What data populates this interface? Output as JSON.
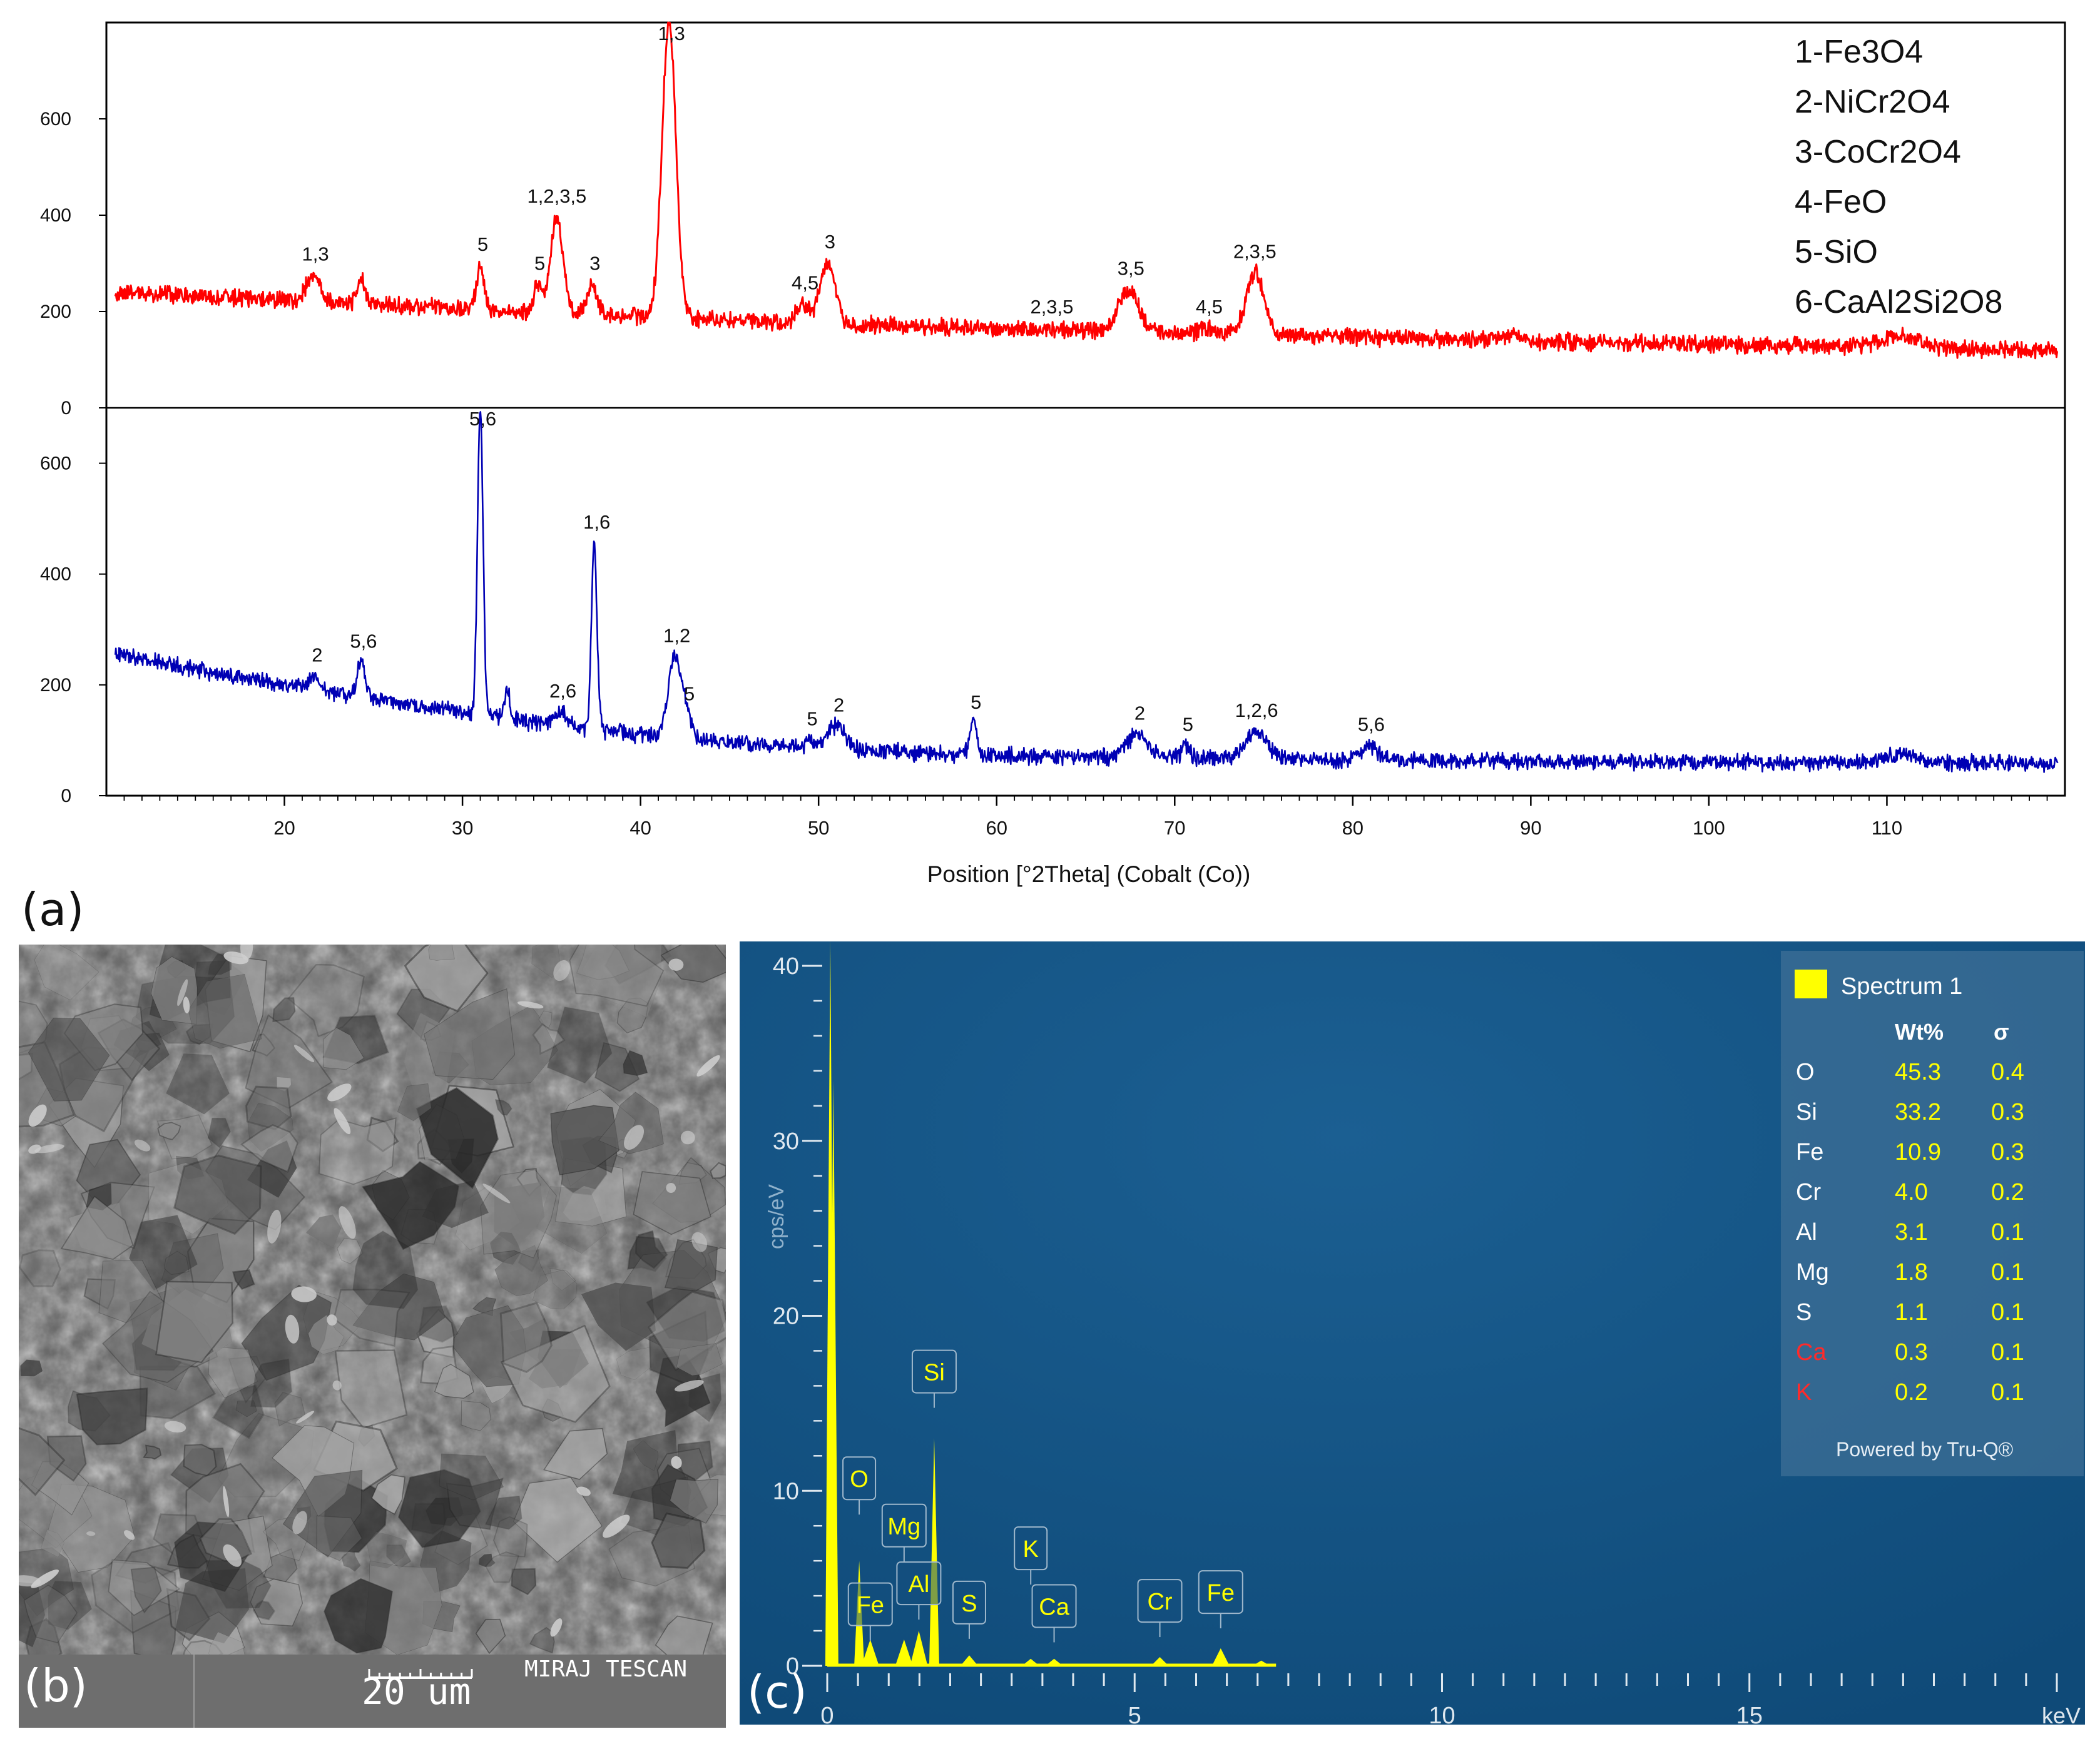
{
  "chart_data": [
    {
      "type": "line",
      "panel": "(a)",
      "xlabel": "Position [°2Theta] (Cobalt (Co))",
      "xlim": [
        10,
        120
      ],
      "x_ticks": [
        20,
        30,
        40,
        50,
        60,
        70,
        80,
        90,
        100,
        110
      ],
      "legend": [
        "1-Fe3O4",
        "2-NiCr2O4",
        "3-CoCr2O4",
        "4-FeO",
        "5-SiO",
        "6-CaAl2Si2O8"
      ],
      "legend_placement": "top-right",
      "series": [
        {
          "name": "top pattern",
          "color": "#ff0000",
          "ylim": [
            0,
            800
          ],
          "y_ticks": [
            0,
            200,
            400,
            600
          ],
          "baseline": [
            [
              10.5,
              240
            ],
            [
              20,
              225
            ],
            [
              30,
              205
            ],
            [
              40,
              190
            ],
            [
              50,
              175
            ],
            [
              60,
              165
            ],
            [
              70,
              155
            ],
            [
              80,
              148
            ],
            [
              90,
              138
            ],
            [
              100,
              132
            ],
            [
              110,
              128
            ],
            [
              119.5,
              118
            ]
          ],
          "peaks": [
            {
              "x": 21.6,
              "y": 275,
              "w": 0.5,
              "label": "1,3"
            },
            {
              "x": 24.3,
              "y": 265,
              "w": 0.3,
              "label": ""
            },
            {
              "x": 31.0,
              "y": 295,
              "w": 0.3,
              "label": "5"
            },
            {
              "x": 34.2,
              "y": 255,
              "w": 0.3,
              "label": "5"
            },
            {
              "x": 35.3,
              "y": 395,
              "w": 0.5,
              "label": "1,2,3,5"
            },
            {
              "x": 37.3,
              "y": 255,
              "w": 0.4,
              "label": "3"
            },
            {
              "x": 41.6,
              "y": 800,
              "w": 0.55,
              "label": "1,3"
            },
            {
              "x": 49.1,
              "y": 215,
              "w": 0.5,
              "label": "4,5"
            },
            {
              "x": 50.5,
              "y": 300,
              "w": 0.6,
              "label": "3"
            },
            {
              "x": 63.1,
              "y": 165,
              "w": 0.9,
              "label": "2,3,5"
            },
            {
              "x": 67.4,
              "y": 245,
              "w": 0.8,
              "label": "3,5"
            },
            {
              "x": 71.8,
              "y": 165,
              "w": 0.6,
              "label": "4,5"
            },
            {
              "x": 74.5,
              "y": 280,
              "w": 0.7,
              "label": "2,3,5"
            },
            {
              "x": 88.8,
              "y": 150,
              "w": 1.0,
              "label": ""
            },
            {
              "x": 110.8,
              "y": 150,
              "w": 1.2,
              "label": ""
            }
          ]
        },
        {
          "name": "bottom pattern",
          "color": "#0000b4",
          "ylim": [
            0,
            700
          ],
          "y_ticks": [
            0,
            200,
            400,
            600
          ],
          "baseline": [
            [
              10.5,
              255
            ],
            [
              15,
              228
            ],
            [
              20,
              200
            ],
            [
              25,
              175
            ],
            [
              30,
              150
            ],
            [
              35,
              128
            ],
            [
              40,
              110
            ],
            [
              45,
              95
            ],
            [
              50,
              85
            ],
            [
              55,
              78
            ],
            [
              60,
              72
            ],
            [
              70,
              68
            ],
            [
              80,
              65
            ],
            [
              90,
              62
            ],
            [
              100,
              60
            ],
            [
              110,
              60
            ],
            [
              119.5,
              58
            ]
          ],
          "peaks": [
            {
              "x": 21.7,
              "y": 215,
              "w": 0.4,
              "label": "2"
            },
            {
              "x": 24.3,
              "y": 240,
              "w": 0.3,
              "label": "5,6"
            },
            {
              "x": 31.0,
              "y": 700,
              "w": 0.22,
              "label": "5,6"
            },
            {
              "x": 32.5,
              "y": 200,
              "w": 0.2,
              "label": ""
            },
            {
              "x": 35.5,
              "y": 150,
              "w": 0.5,
              "label": "2,6"
            },
            {
              "x": 37.4,
              "y": 455,
              "w": 0.22,
              "label": "1,6"
            },
            {
              "x": 41.9,
              "y": 250,
              "w": 0.5,
              "label": "1,2"
            },
            {
              "x": 42.6,
              "y": 145,
              "w": 0.4,
              "label": "5"
            },
            {
              "x": 49.5,
              "y": 100,
              "w": 0.3,
              "label": "5"
            },
            {
              "x": 51.0,
              "y": 125,
              "w": 0.7,
              "label": "2"
            },
            {
              "x": 58.7,
              "y": 130,
              "w": 0.3,
              "label": "5"
            },
            {
              "x": 67.9,
              "y": 110,
              "w": 0.8,
              "label": "2"
            },
            {
              "x": 70.6,
              "y": 90,
              "w": 0.3,
              "label": "5"
            },
            {
              "x": 74.6,
              "y": 115,
              "w": 0.8,
              "label": "1,2,6"
            },
            {
              "x": 80.9,
              "y": 90,
              "w": 0.7,
              "label": "5,6"
            },
            {
              "x": 110.8,
              "y": 75,
              "w": 1.2,
              "label": ""
            }
          ]
        }
      ]
    },
    {
      "type": "bar",
      "panel": "(c)",
      "xlabel": "keV",
      "ylabel": "cps/eV",
      "xlim": [
        0,
        20
      ],
      "ylim": [
        0,
        40
      ],
      "x_ticks": [
        0,
        5,
        10,
        15
      ],
      "y_ticks": [
        0,
        10,
        20,
        30,
        40
      ],
      "series_name": "Spectrum 1",
      "series_color": "#ffff00",
      "lines": [
        {
          "x": 0.05,
          "y": 41.5
        },
        {
          "x": 0.1,
          "y": 33.5
        },
        {
          "x": 0.52,
          "y": 6.0
        },
        {
          "x": 0.7,
          "y": 1.5
        },
        {
          "x": 1.25,
          "y": 1.5
        },
        {
          "x": 1.49,
          "y": 2.0
        },
        {
          "x": 1.74,
          "y": 13.0
        },
        {
          "x": 2.31,
          "y": 0.6
        },
        {
          "x": 3.31,
          "y": 0.4
        },
        {
          "x": 3.69,
          "y": 0.4
        },
        {
          "x": 5.41,
          "y": 0.5
        },
        {
          "x": 6.4,
          "y": 1.0
        },
        {
          "x": 7.06,
          "y": 0.3
        }
      ],
      "peak_labels": [
        {
          "label": "O",
          "x": 0.52,
          "y": 9.5
        },
        {
          "label": "Fe",
          "x": 0.7,
          "y": 2.3
        },
        {
          "label": "Mg",
          "x": 1.25,
          "y": 6.8
        },
        {
          "label": "Al",
          "x": 1.49,
          "y": 3.5
        },
        {
          "label": "Si",
          "x": 1.74,
          "y": 15.6
        },
        {
          "label": "S",
          "x": 2.31,
          "y": 2.4
        },
        {
          "label": "K",
          "x": 3.31,
          "y": 5.5
        },
        {
          "label": "Ca",
          "x": 3.69,
          "y": 2.2
        },
        {
          "label": "Cr",
          "x": 5.41,
          "y": 2.5
        },
        {
          "label": "Fe",
          "x": 6.4,
          "y": 3.0
        }
      ]
    }
  ],
  "panel_labels": {
    "a": "(a)",
    "b": "(b)",
    "c": "(c)"
  },
  "sem": {
    "scale_label": "20 um",
    "footer_text": "MIRAJ TESCAN",
    "scale_bar_um": 20
  },
  "eds_table": {
    "title": "Spectrum 1",
    "col_wt": "Wt%",
    "col_sigma": "σ",
    "rows": [
      {
        "el": "O",
        "wt": "45.3",
        "sigma": "0.4",
        "flag": false
      },
      {
        "el": "Si",
        "wt": "33.2",
        "sigma": "0.3",
        "flag": false
      },
      {
        "el": "Fe",
        "wt": "10.9",
        "sigma": "0.3",
        "flag": false
      },
      {
        "el": "Cr",
        "wt": "4.0",
        "sigma": "0.2",
        "flag": false
      },
      {
        "el": "Al",
        "wt": "3.1",
        "sigma": "0.1",
        "flag": false
      },
      {
        "el": "Mg",
        "wt": "1.8",
        "sigma": "0.1",
        "flag": false
      },
      {
        "el": "S",
        "wt": "1.1",
        "sigma": "0.1",
        "flag": false
      },
      {
        "el": "Ca",
        "wt": "0.3",
        "sigma": "0.1",
        "flag": true
      },
      {
        "el": "K",
        "wt": "0.2",
        "sigma": "0.1",
        "flag": true
      }
    ],
    "footer": "Powered by Tru-Q®"
  },
  "colors": {
    "red_series": "#ff0000",
    "blue_series": "#0000b4",
    "eds_bg": "#0f4a78",
    "eds_yellow": "#ffff00",
    "eds_flag": "#ff2a2a"
  }
}
